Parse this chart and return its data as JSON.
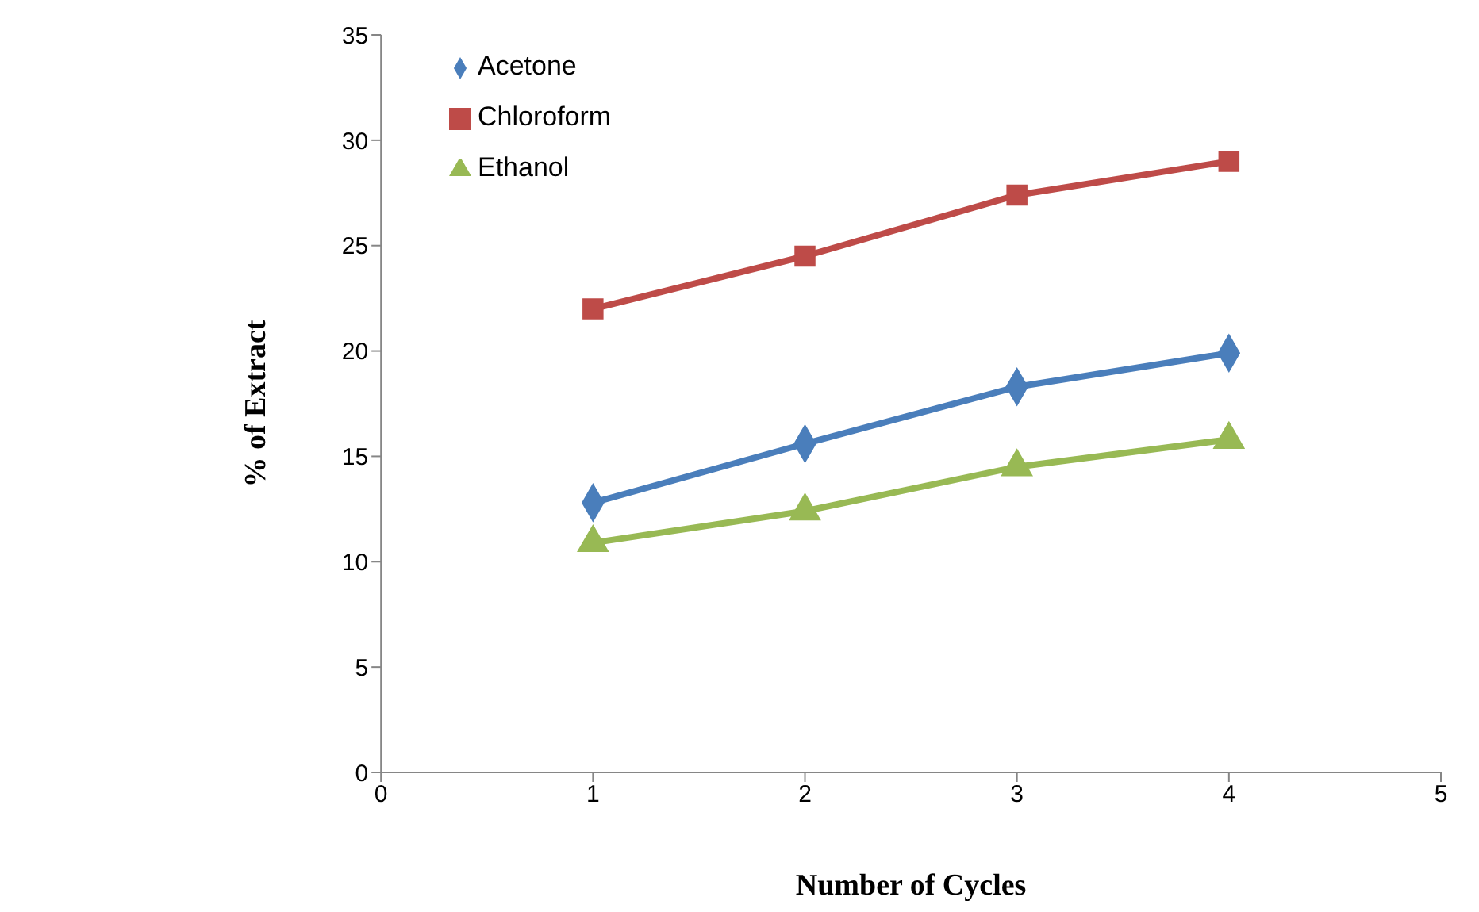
{
  "chart_data": {
    "type": "line",
    "xlabel": "Number of Cycles",
    "ylabel": "% of Extract",
    "x": [
      1,
      2,
      3,
      4
    ],
    "series": [
      {
        "name": "Acetone",
        "color": "#4a7ebb",
        "values": [
          12.8,
          15.6,
          18.3,
          19.9
        ],
        "marker": "diamond"
      },
      {
        "name": "Chloroform",
        "color": "#be4b48",
        "values": [
          22.0,
          24.5,
          27.4,
          29.0
        ],
        "marker": "square"
      },
      {
        "name": "Ethanol",
        "color": "#98b954",
        "values": [
          10.9,
          12.4,
          14.5,
          15.8
        ],
        "marker": "triangle"
      }
    ],
    "xlim": [
      0,
      5
    ],
    "xticks": [
      0,
      1,
      2,
      3,
      4,
      5
    ],
    "ylim": [
      0,
      35
    ],
    "yticks": [
      0,
      5,
      10,
      15,
      20,
      25,
      30,
      35
    ],
    "grid": false,
    "legend": "top left",
    "line_style": "solid"
  }
}
